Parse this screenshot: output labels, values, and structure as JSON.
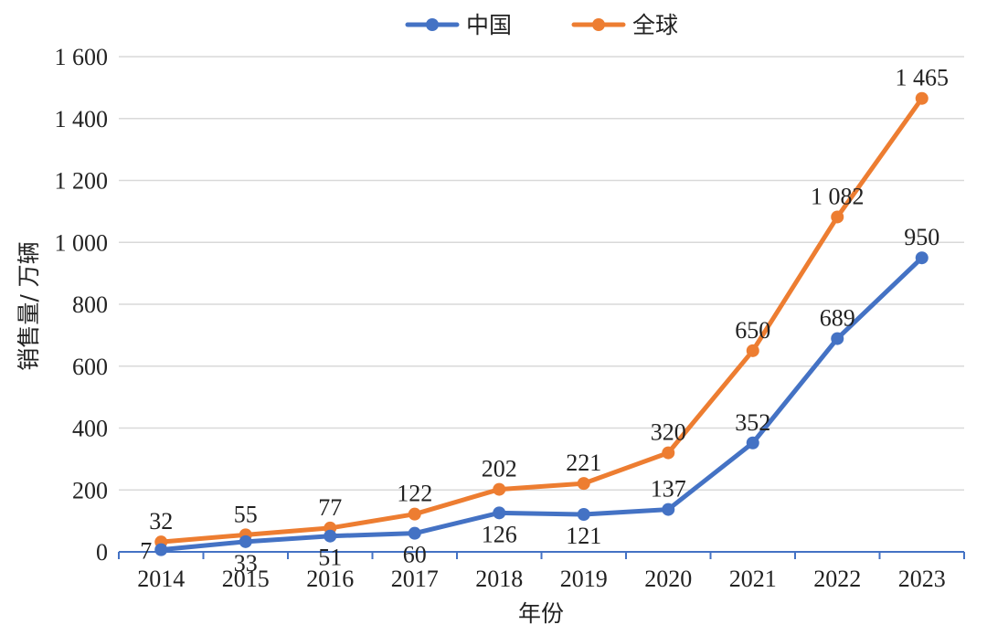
{
  "colors": {
    "china": "#4472C4",
    "global": "#ED7D31",
    "grid": "#D9D9D9",
    "axis": "#4472C4"
  },
  "chart_data": {
    "type": "line",
    "x": [
      "2014",
      "2015",
      "2016",
      "2017",
      "2018",
      "2019",
      "2020",
      "2021",
      "2022",
      "2023"
    ],
    "series": [
      {
        "name": "中国",
        "values": [
          7,
          33,
          51,
          60,
          126,
          121,
          137,
          352,
          689,
          950
        ]
      },
      {
        "name": "全球",
        "values": [
          32,
          55,
          77,
          122,
          202,
          221,
          320,
          650,
          1082,
          1465
        ]
      }
    ],
    "data_labels": {
      "中国": [
        "7",
        "33",
        "51",
        "60",
        "126",
        "121",
        "137",
        "352",
        "689",
        "950"
      ],
      "全球": [
        "32",
        "55",
        "77",
        "122",
        "202",
        "221",
        "320",
        "650",
        "1 082",
        "1 465"
      ]
    },
    "xlabel": "年份",
    "ylabel": "销售量/ 万辆",
    "ylim": [
      0,
      1600
    ],
    "yticks": [
      0,
      200,
      400,
      600,
      800,
      1000,
      1200,
      1400,
      1600
    ],
    "ytick_labels": [
      "0",
      "200",
      "400",
      "600",
      "800",
      "1 000",
      "1 200",
      "1 400",
      "1 600"
    ],
    "grid": true,
    "legend_position": "top-center"
  }
}
